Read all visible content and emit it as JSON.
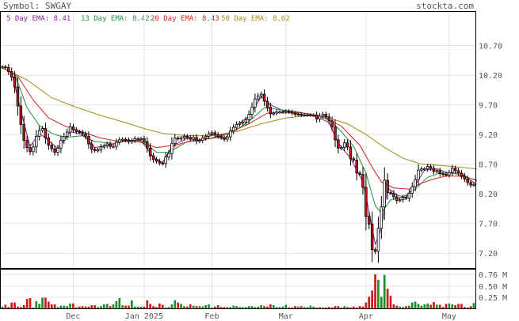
{
  "header": {
    "symbol_label": "Symbol: SWGAY",
    "site": "stockta.com"
  },
  "legend": [
    {
      "label": "5 Day EMA: 8.41",
      "color": "#7a1fa2"
    },
    {
      "label": "13 Day EMA: 8.42",
      "color": "#1e8f3a"
    },
    {
      "label": "20 Day EMA: 8.43",
      "color": "#d42020"
    },
    {
      "label": "50 Day EMA: 8.62",
      "color": "#a08c10"
    }
  ],
  "chart_data": {
    "type": "candlestick",
    "title": "Symbol: SWGAY",
    "price_axis": {
      "ylim": [
        6.95,
        11.0
      ],
      "ticks": [
        10.7,
        10.2,
        9.7,
        9.2,
        8.7,
        8.2,
        7.7,
        7.2
      ],
      "tick_labels": [
        "10.70",
        "10.20",
        "9.70",
        "9.20",
        "8.70",
        "8.20",
        "7.70",
        "7.20"
      ]
    },
    "volume_axis": {
      "ylim": [
        0,
        0.85
      ],
      "ticks": [
        0.76,
        0.5,
        0.25
      ],
      "tick_labels": [
        "0.76 M",
        "0.50 M",
        "0.25 M"
      ]
    },
    "x_labels": [
      {
        "label": "Dec",
        "index": 23
      },
      {
        "label": "Jan 2025",
        "index": 46
      },
      {
        "label": "Feb",
        "index": 68
      },
      {
        "label": "Mar",
        "index": 92
      },
      {
        "label": "Apr",
        "index": 118
      },
      {
        "label": "May",
        "index": 145
      }
    ],
    "close": [
      10.34,
      10.33,
      10.26,
      10.17,
      10.0,
      9.68,
      9.37,
      9.1,
      8.98,
      8.91,
      8.99,
      9.17,
      9.27,
      9.3,
      9.14,
      9.02,
      8.96,
      8.9,
      8.97,
      9.1,
      9.17,
      9.24,
      9.33,
      9.28,
      9.25,
      9.24,
      9.21,
      9.17,
      9.04,
      8.95,
      8.93,
      8.94,
      8.99,
      9.01,
      9.04,
      9.0,
      9.0,
      9.07,
      9.11,
      9.12,
      9.11,
      9.08,
      9.1,
      9.13,
      9.13,
      9.13,
      9.08,
      8.97,
      8.84,
      8.78,
      8.75,
      8.72,
      8.71,
      8.82,
      8.88,
      9.05,
      9.14,
      9.13,
      9.14,
      9.17,
      9.15,
      9.12,
      9.15,
      9.09,
      9.1,
      9.14,
      9.17,
      9.21,
      9.23,
      9.2,
      9.17,
      9.15,
      9.12,
      9.16,
      9.26,
      9.32,
      9.37,
      9.39,
      9.41,
      9.45,
      9.54,
      9.66,
      9.8,
      9.85,
      9.88,
      9.76,
      9.66,
      9.55,
      9.56,
      9.58,
      9.58,
      9.58,
      9.59,
      9.58,
      9.56,
      9.54,
      9.54,
      9.53,
      9.53,
      9.53,
      9.53,
      9.53,
      9.46,
      9.51,
      9.54,
      9.5,
      9.43,
      9.33,
      9.11,
      8.97,
      8.98,
      9.06,
      8.99,
      8.79,
      8.77,
      8.55,
      8.53,
      8.31,
      7.82,
      7.69,
      7.26,
      7.23,
      7.62,
      7.98,
      8.43,
      8.22,
      8.21,
      8.15,
      8.09,
      8.1,
      8.14,
      8.13,
      8.21,
      8.32,
      8.44,
      8.6,
      8.62,
      8.62,
      8.66,
      8.63,
      8.58,
      8.59,
      8.54,
      8.53,
      8.52,
      8.56,
      8.63,
      8.59,
      8.55,
      8.5,
      8.45,
      8.39,
      8.35,
      8.36
    ],
    "volume": [
      0.04,
      0.08,
      0.03,
      0.13,
      0.13,
      0.04,
      0.03,
      0.07,
      0.21,
      0.23,
      0.02,
      0.16,
      0.1,
      0.24,
      0.24,
      0.15,
      0.09,
      0.09,
      0.03,
      0.06,
      0.06,
      0.05,
      0.11,
      0.11,
      0.02,
      0.04,
      0.05,
      0.04,
      0.04,
      0.07,
      0.07,
      0.03,
      0.05,
      0.09,
      0.1,
      0.05,
      0.09,
      0.16,
      0.23,
      0.07,
      0.06,
      0.06,
      0.18,
      0.04,
      0.04,
      0.04,
      0.04,
      0.18,
      0.1,
      0.05,
      0.03,
      0.11,
      0.08,
      0.02,
      0.03,
      0.09,
      0.18,
      0.13,
      0.1,
      0.05,
      0.04,
      0.09,
      0.06,
      0.05,
      0.05,
      0.04,
      0.07,
      0.09,
      0.02,
      0.04,
      0.07,
      0.03,
      0.03,
      0.03,
      0.03,
      0.06,
      0.05,
      0.03,
      0.03,
      0.03,
      0.05,
      0.05,
      0.03,
      0.04,
      0.07,
      0.05,
      0.04,
      0.09,
      0.07,
      0.03,
      0.03,
      0.04,
      0.08,
      0.02,
      0.02,
      0.05,
      0.04,
      0.05,
      0.03,
      0.03,
      0.06,
      0.04,
      0.02,
      0.03,
      0.02,
      0.02,
      0.03,
      0.02,
      0.05,
      0.05,
      0.02,
      0.05,
      0.03,
      0.02,
      0.04,
      0.02,
      0.05,
      0.04,
      0.13,
      0.26,
      0.4,
      0.76,
      0.64,
      0.26,
      0.75,
      0.44,
      0.28,
      0.09,
      0.06,
      0.04,
      0.03,
      0.05,
      0.06,
      0.13,
      0.15,
      0.1,
      0.06,
      0.09,
      0.11,
      0.08,
      0.14,
      0.08,
      0.08,
      0.03,
      0.1,
      0.11,
      0.09,
      0.07,
      0.1,
      0.1,
      0.03,
      0.02,
      0.05,
      0.12
    ],
    "ema": [
      {
        "name": "5 Day EMA: 8.41",
        "color": "#7a1fa2",
        "points": [
          [
            0,
            10.32
          ],
          [
            3,
            10.25
          ],
          [
            6,
            9.6
          ],
          [
            9,
            9.0
          ],
          [
            12,
            9.22
          ],
          [
            15,
            9.1
          ],
          [
            18,
            8.96
          ],
          [
            22,
            9.25
          ],
          [
            26,
            9.2
          ],
          [
            30,
            8.98
          ],
          [
            35,
            9.02
          ],
          [
            40,
            9.1
          ],
          [
            45,
            9.1
          ],
          [
            49,
            8.82
          ],
          [
            52,
            8.72
          ],
          [
            55,
            9.0
          ],
          [
            60,
            9.14
          ],
          [
            64,
            9.1
          ],
          [
            68,
            9.2
          ],
          [
            72,
            9.12
          ],
          [
            76,
            9.36
          ],
          [
            80,
            9.5
          ],
          [
            84,
            9.84
          ],
          [
            87,
            9.7
          ],
          [
            92,
            9.58
          ],
          [
            97,
            9.54
          ],
          [
            102,
            9.5
          ],
          [
            106,
            9.4
          ],
          [
            109,
            9.05
          ],
          [
            113,
            8.8
          ],
          [
            117,
            8.4
          ],
          [
            119,
            7.9
          ],
          [
            121,
            7.35
          ],
          [
            123,
            7.62
          ],
          [
            125,
            8.3
          ],
          [
            128,
            8.18
          ],
          [
            131,
            8.14
          ],
          [
            134,
            8.35
          ],
          [
            137,
            8.6
          ],
          [
            141,
            8.62
          ],
          [
            145,
            8.55
          ],
          [
            149,
            8.55
          ],
          [
            152,
            8.42
          ],
          [
            154,
            8.37
          ]
        ]
      },
      {
        "name": "13 Day EMA: 8.42",
        "color": "#1e8f3a",
        "points": [
          [
            0,
            10.32
          ],
          [
            4,
            10.22
          ],
          [
            8,
            9.65
          ],
          [
            12,
            9.35
          ],
          [
            16,
            9.22
          ],
          [
            20,
            9.15
          ],
          [
            26,
            9.18
          ],
          [
            30,
            9.08
          ],
          [
            36,
            9.05
          ],
          [
            42,
            9.1
          ],
          [
            46,
            9.08
          ],
          [
            50,
            8.9
          ],
          [
            54,
            8.9
          ],
          [
            60,
            9.08
          ],
          [
            66,
            9.12
          ],
          [
            70,
            9.15
          ],
          [
            76,
            9.28
          ],
          [
            80,
            9.42
          ],
          [
            85,
            9.65
          ],
          [
            90,
            9.62
          ],
          [
            96,
            9.58
          ],
          [
            102,
            9.52
          ],
          [
            106,
            9.45
          ],
          [
            110,
            9.25
          ],
          [
            114,
            9.0
          ],
          [
            118,
            8.55
          ],
          [
            121,
            8.0
          ],
          [
            123,
            7.88
          ],
          [
            126,
            8.1
          ],
          [
            130,
            8.15
          ],
          [
            134,
            8.28
          ],
          [
            138,
            8.48
          ],
          [
            142,
            8.55
          ],
          [
            146,
            8.55
          ],
          [
            150,
            8.5
          ],
          [
            154,
            8.42
          ]
        ]
      },
      {
        "name": "20 Day EMA: 8.43",
        "color": "#d42020",
        "points": [
          [
            0,
            10.32
          ],
          [
            5,
            10.18
          ],
          [
            10,
            9.78
          ],
          [
            15,
            9.48
          ],
          [
            20,
            9.35
          ],
          [
            26,
            9.24
          ],
          [
            32,
            9.14
          ],
          [
            38,
            9.08
          ],
          [
            44,
            9.08
          ],
          [
            50,
            8.98
          ],
          [
            56,
            9.02
          ],
          [
            62,
            9.1
          ],
          [
            68,
            9.14
          ],
          [
            74,
            9.24
          ],
          [
            80,
            9.38
          ],
          [
            86,
            9.56
          ],
          [
            92,
            9.58
          ],
          [
            98,
            9.56
          ],
          [
            104,
            9.5
          ],
          [
            110,
            9.34
          ],
          [
            116,
            9.02
          ],
          [
            120,
            8.65
          ],
          [
            123,
            8.4
          ],
          [
            127,
            8.3
          ],
          [
            132,
            8.28
          ],
          [
            136,
            8.38
          ],
          [
            140,
            8.45
          ],
          [
            144,
            8.5
          ],
          [
            148,
            8.5
          ],
          [
            152,
            8.46
          ],
          [
            154,
            8.43
          ]
        ]
      },
      {
        "name": "50 Day EMA: 8.62",
        "color": "#a08c10",
        "points": [
          [
            0,
            10.32
          ],
          [
            8,
            10.12
          ],
          [
            16,
            9.82
          ],
          [
            24,
            9.66
          ],
          [
            32,
            9.52
          ],
          [
            40,
            9.4
          ],
          [
            46,
            9.3
          ],
          [
            52,
            9.22
          ],
          [
            60,
            9.18
          ],
          [
            68,
            9.18
          ],
          [
            76,
            9.25
          ],
          [
            84,
            9.38
          ],
          [
            92,
            9.48
          ],
          [
            100,
            9.52
          ],
          [
            106,
            9.48
          ],
          [
            112,
            9.38
          ],
          [
            118,
            9.2
          ],
          [
            124,
            8.98
          ],
          [
            130,
            8.8
          ],
          [
            136,
            8.7
          ],
          [
            142,
            8.68
          ],
          [
            148,
            8.65
          ],
          [
            154,
            8.62
          ]
        ]
      }
    ],
    "grid": true
  }
}
